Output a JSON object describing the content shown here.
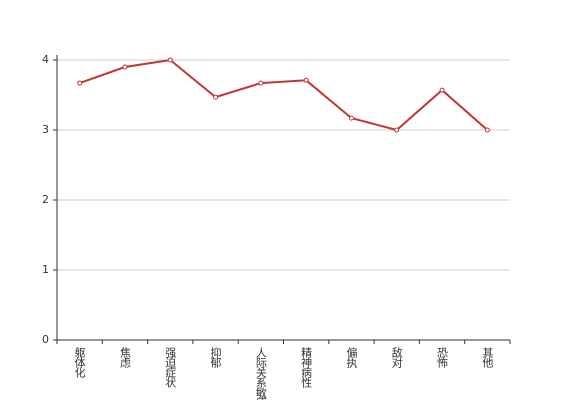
{
  "chart_data": {
    "type": "line",
    "categories": [
      "躯体化",
      "焦虑",
      "强迫症状",
      "抑郁",
      "人际关系敏感",
      "精神病性",
      "偏执",
      "敌对",
      "恐怖",
      "其他"
    ],
    "series": [
      {
        "color": "#c23531",
        "values": [
          3.67,
          3.9,
          4.0,
          3.47,
          3.67,
          3.71,
          3.17,
          3.0,
          3.57,
          3.0
        ]
      }
    ],
    "ylim": [
      0,
      4
    ],
    "yticks": [
      0,
      1,
      2,
      3,
      4
    ],
    "grid": true
  }
}
